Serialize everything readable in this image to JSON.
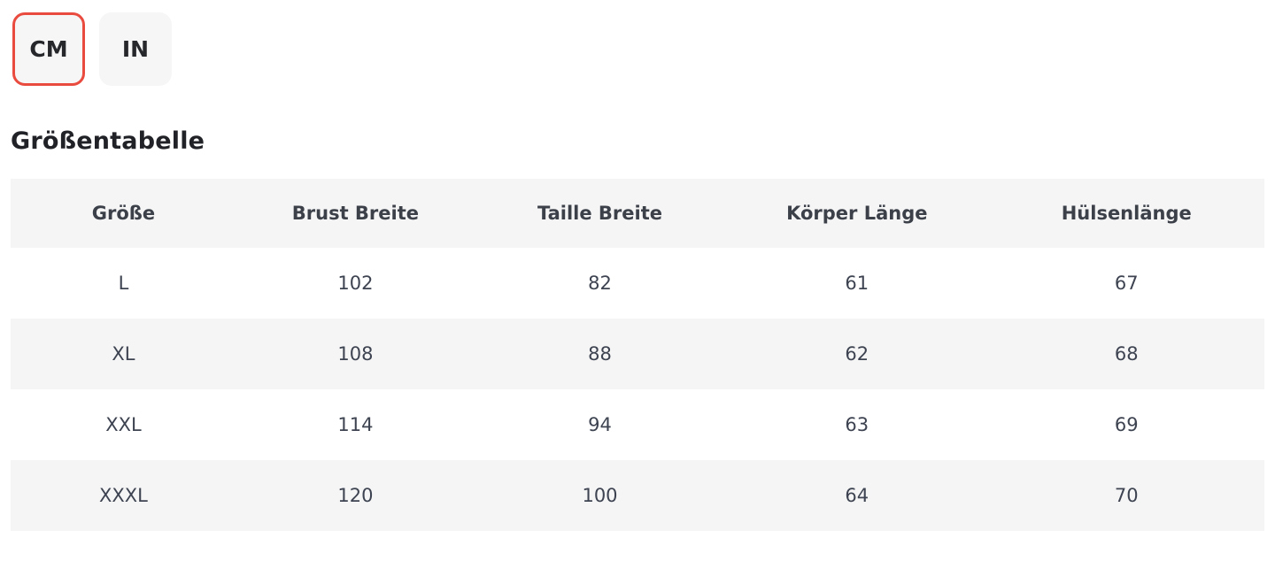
{
  "unit_toggle": {
    "options": [
      {
        "label": "CM",
        "selected": true
      },
      {
        "label": "IN",
        "selected": false
      }
    ]
  },
  "title": "Größentabelle",
  "size_table": {
    "headers": [
      "Größe",
      "Brust Breite",
      "Taille Breite",
      "Körper Länge",
      "Hülsenlänge"
    ],
    "rows": [
      [
        "L",
        "102",
        "82",
        "61",
        "67"
      ],
      [
        "XL",
        "108",
        "88",
        "62",
        "68"
      ],
      [
        "XXL",
        "114",
        "94",
        "63",
        "69"
      ],
      [
        "XXXL",
        "120",
        "100",
        "64",
        "70"
      ]
    ]
  },
  "colors": {
    "accent_red": "#ea4b3f",
    "button_bg": "#f6f6f7",
    "table_stripe": "#f5f5f6",
    "header_text": "#3b4049",
    "body_text": "#3d4350"
  }
}
